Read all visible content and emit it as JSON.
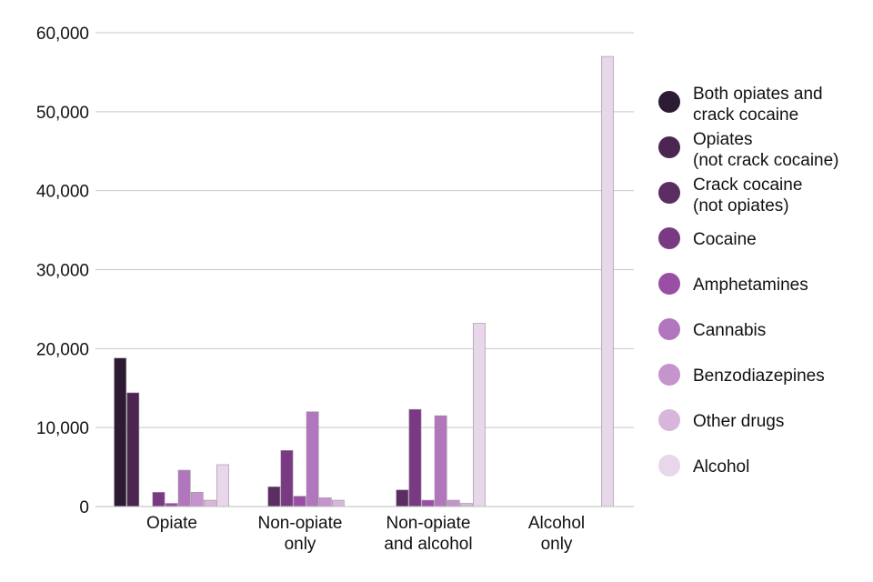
{
  "chart_data": {
    "type": "bar",
    "title": "",
    "xlabel": "",
    "ylabel": "",
    "ylim": [
      0,
      60000
    ],
    "yticks": [
      0,
      10000,
      20000,
      30000,
      40000,
      50000,
      60000
    ],
    "ytick_labels": [
      "0",
      "10,000",
      "20,000",
      "30,000",
      "40,000",
      "50,000",
      "60,000"
    ],
    "grid": true,
    "legend_position": "right",
    "categories": [
      [
        "Opiate"
      ],
      [
        "Non-opiate",
        "only"
      ],
      [
        "Non-opiate",
        "and alcohol"
      ],
      [
        "Alcohol",
        "only"
      ]
    ],
    "series": [
      {
        "name": [
          "Both opiates and",
          "crack cocaine"
        ],
        "color": "#2d1a33",
        "values": [
          18800,
          0,
          0,
          0
        ]
      },
      {
        "name": [
          "Opiates",
          "(not crack cocaine)"
        ],
        "color": "#4a2650",
        "values": [
          14400,
          0,
          0,
          0
        ]
      },
      {
        "name": [
          "Crack cocaine",
          "(not opiates)"
        ],
        "color": "#5b2d62",
        "values": [
          0,
          2500,
          2100,
          0
        ]
      },
      {
        "name": [
          "Cocaine"
        ],
        "color": "#7a3a83",
        "values": [
          1800,
          7100,
          12300,
          0
        ]
      },
      {
        "name": [
          "Amphetamines"
        ],
        "color": "#9b4ea6",
        "values": [
          400,
          1300,
          800,
          0
        ]
      },
      {
        "name": [
          "Cannabis"
        ],
        "color": "#b276bd",
        "values": [
          4600,
          12000,
          11500,
          0
        ]
      },
      {
        "name": [
          "Benzodiazepines"
        ],
        "color": "#c594cc",
        "values": [
          1800,
          1100,
          800,
          0
        ]
      },
      {
        "name": [
          "Other drugs"
        ],
        "color": "#d8b6dc",
        "values": [
          800,
          800,
          400,
          0
        ]
      },
      {
        "name": [
          "Alcohol"
        ],
        "color": "#e8d6ea",
        "values": [
          5300,
          0,
          23200,
          57000
        ]
      }
    ]
  }
}
